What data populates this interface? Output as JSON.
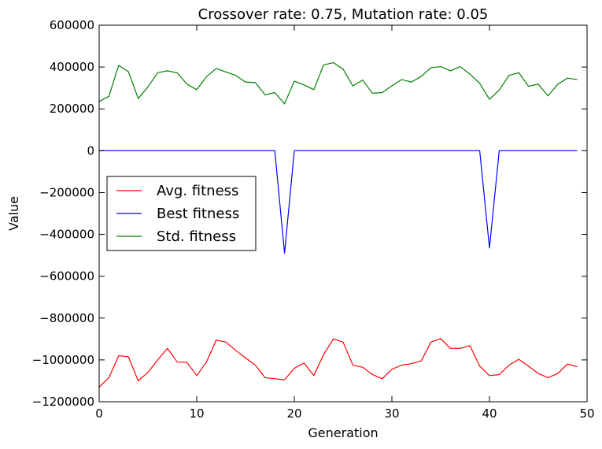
{
  "chart_data": {
    "type": "line",
    "title": "Crossover rate: 0.75, Mutation rate: 0.05",
    "xlabel": "Generation",
    "ylabel": "Value",
    "xlim": [
      0,
      50
    ],
    "ylim": [
      -1200000,
      600000
    ],
    "xticks": [
      0,
      10,
      20,
      30,
      40,
      50
    ],
    "xtick_labels": [
      "0",
      "10",
      "20",
      "30",
      "40",
      "50"
    ],
    "yticks": [
      -1200000,
      -1000000,
      -800000,
      -600000,
      -400000,
      -200000,
      0,
      200000,
      400000,
      600000
    ],
    "ytick_labels": [
      "−1200000",
      "−1000000",
      "−800000",
      "−600000",
      "−400000",
      "−200000",
      "0",
      "200000",
      "400000",
      "600000"
    ],
    "grid": false,
    "legend_position": "center-left",
    "x": [
      0,
      1,
      2,
      3,
      4,
      5,
      6,
      7,
      8,
      9,
      10,
      11,
      12,
      13,
      14,
      15,
      16,
      17,
      18,
      19,
      20,
      21,
      22,
      23,
      24,
      25,
      26,
      27,
      28,
      29,
      30,
      31,
      32,
      33,
      34,
      35,
      36,
      37,
      38,
      39,
      40,
      41,
      42,
      43,
      44,
      45,
      46,
      47,
      48,
      49
    ],
    "series": [
      {
        "name": "Avg. fitness",
        "color": "#ff0000",
        "values": [
          -1130000,
          -1085000,
          -980000,
          -985000,
          -1100000,
          -1060000,
          -1000000,
          -945000,
          -1010000,
          -1012000,
          -1075000,
          -1010000,
          -905000,
          -915000,
          -955000,
          -990000,
          -1025000,
          -1085000,
          -1090000,
          -1095000,
          -1040000,
          -1015000,
          -1075000,
          -975000,
          -900000,
          -915000,
          -1025000,
          -1035000,
          -1070000,
          -1090000,
          -1045000,
          -1025000,
          -1018000,
          -1005000,
          -915000,
          -898000,
          -945000,
          -945000,
          -932000,
          -1030000,
          -1075000,
          -1070000,
          -1025000,
          -997000,
          -1030000,
          -1065000,
          -1085000,
          -1065000,
          -1020000,
          -1032000
        ]
      },
      {
        "name": "Best fitness",
        "color": "#0000ff",
        "values": [
          0,
          0,
          0,
          0,
          0,
          0,
          0,
          0,
          0,
          0,
          0,
          0,
          0,
          0,
          0,
          0,
          0,
          0,
          0,
          -490000,
          0,
          0,
          0,
          0,
          0,
          0,
          0,
          0,
          0,
          0,
          0,
          0,
          0,
          0,
          0,
          0,
          0,
          0,
          0,
          0,
          -465000,
          0,
          0,
          0,
          0,
          0,
          0,
          0,
          0,
          0
        ]
      },
      {
        "name": "Std. fitness",
        "color": "#008000",
        "values": [
          235000,
          260000,
          408000,
          378000,
          250000,
          305000,
          373000,
          382000,
          372000,
          318000,
          292000,
          354000,
          393000,
          376000,
          360000,
          328000,
          326000,
          267000,
          278000,
          224000,
          333000,
          314000,
          292000,
          410000,
          421000,
          390000,
          310000,
          338000,
          275000,
          278000,
          310000,
          340000,
          328000,
          355000,
          397000,
          402000,
          382000,
          402000,
          366000,
          322000,
          246000,
          290000,
          360000,
          373000,
          308000,
          318000,
          262000,
          318000,
          347000,
          340000
        ]
      }
    ]
  }
}
